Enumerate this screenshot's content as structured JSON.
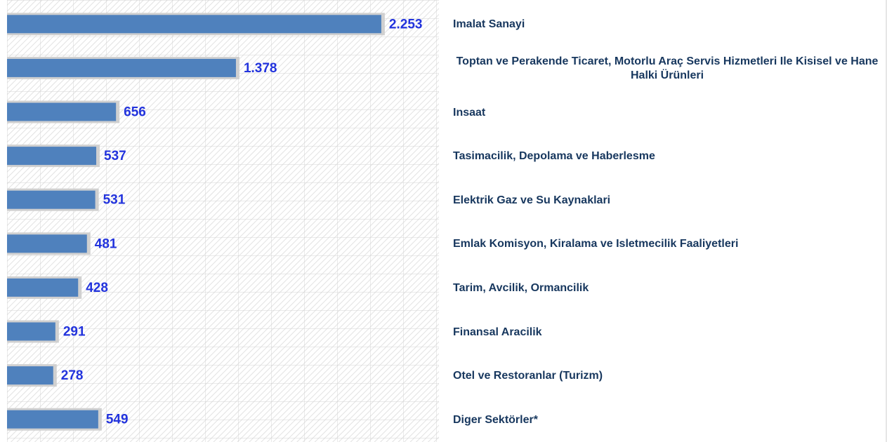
{
  "chart_data": {
    "type": "hbar",
    "categories": [
      "Imalat Sanayi",
      "Toptan ve Perakende Ticaret, Motorlu Araç Servis Hizmetleri Ile Kisisel ve Hane Halki Ürünleri",
      "Insaat",
      "Tasimacilik, Depolama ve Haberlesme",
      "Elektrik Gaz ve Su Kaynaklari",
      "Emlak Komisyon, Kiralama ve Isletmecilik Faaliyetleri",
      "Tarim, Avcilik, Ormancilik",
      "Finansal Aracilik",
      "Otel ve Restoranlar (Turizm)",
      "Diger Sektörler*"
    ],
    "values": [
      2253,
      1378,
      656,
      537,
      531,
      481,
      428,
      291,
      278,
      549
    ],
    "value_labels": [
      "2.253",
      "1.378",
      "656",
      "537",
      "531",
      "481",
      "428",
      "291",
      "278",
      "549"
    ],
    "color": "#4f81bd",
    "xlim": [
      0,
      2600
    ]
  }
}
